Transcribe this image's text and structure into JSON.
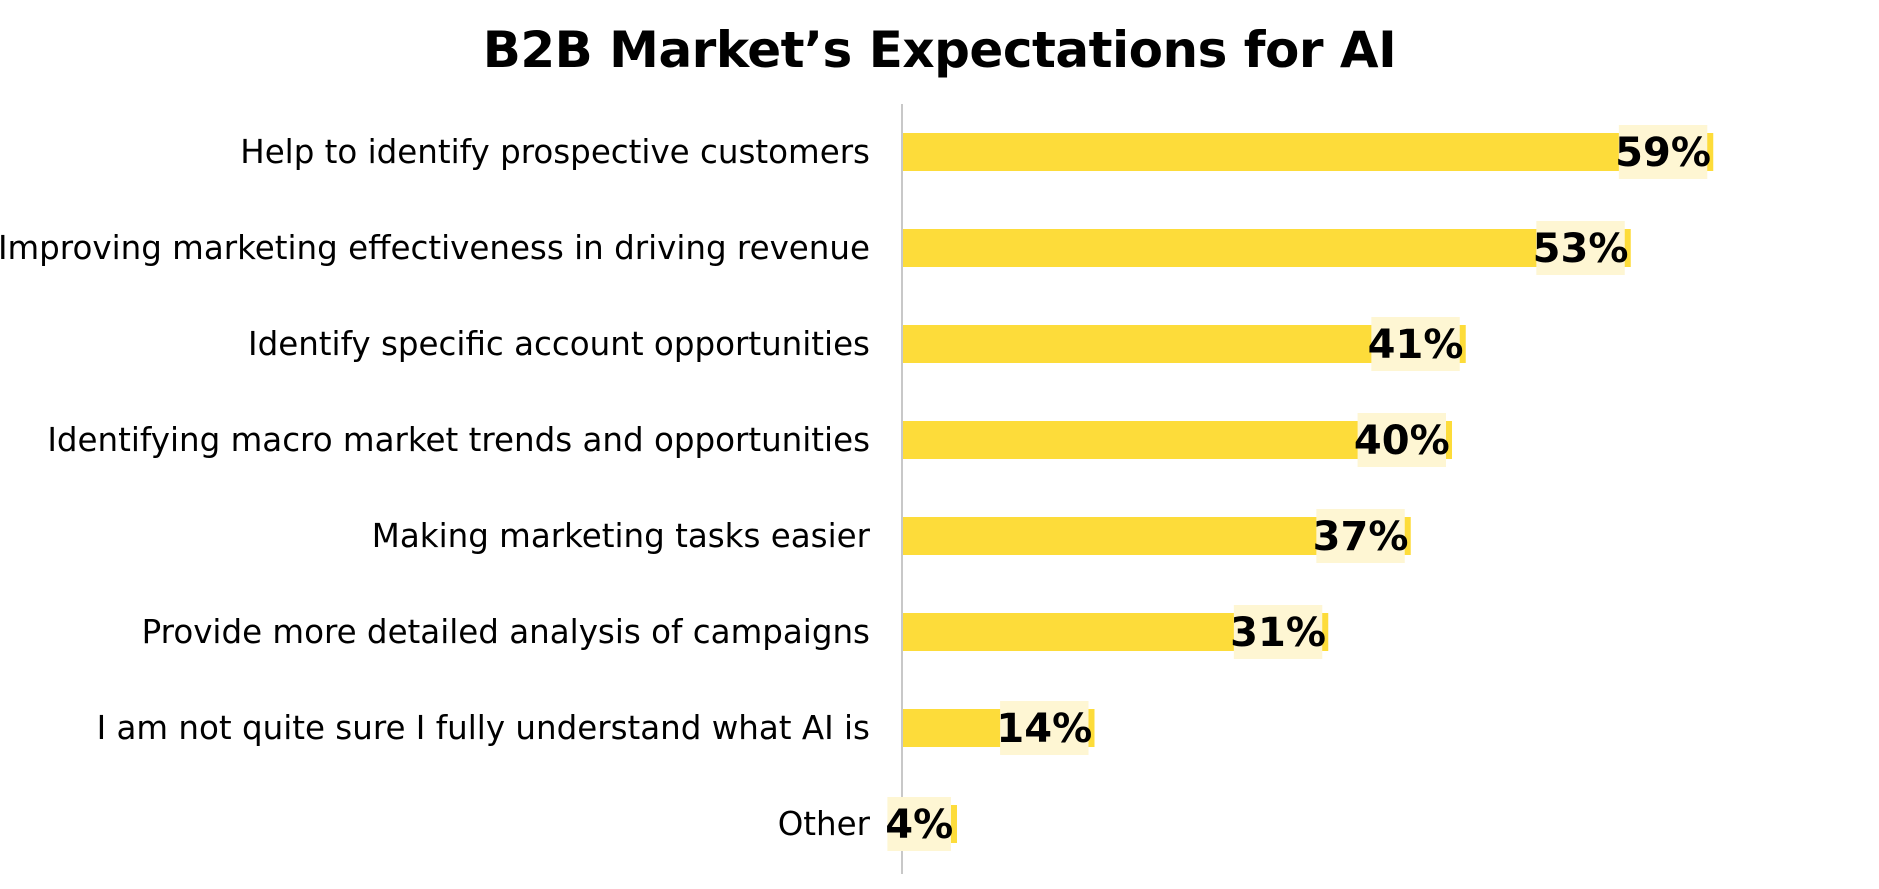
{
  "chart_data": {
    "type": "bar",
    "orientation": "horizontal",
    "title": "B2B Market’s Expectations for AI",
    "categories": [
      "Help to identify prospective customers",
      "Improving marketing effectiveness in driving revenue",
      "Identify specific account opportunities",
      "Identifying macro market trends and opportunities",
      "Making marketing tasks easier",
      "Provide more detailed analysis of campaigns",
      "I am not quite sure I fully understand what AI is",
      "Other"
    ],
    "values": [
      59,
      53,
      41,
      40,
      37,
      31,
      14,
      4
    ],
    "value_labels": [
      "59%",
      "53%",
      "41%",
      "40%",
      "37%",
      "31%",
      "14%",
      "4%"
    ],
    "unit": "%",
    "xlim": [
      0,
      100
    ],
    "grid": false,
    "legend": "none",
    "colors": {
      "bar": "#FDDC3A",
      "label_background": "#FEF6D3",
      "axis_line": "#C8C8C8",
      "text": "#000000"
    }
  }
}
